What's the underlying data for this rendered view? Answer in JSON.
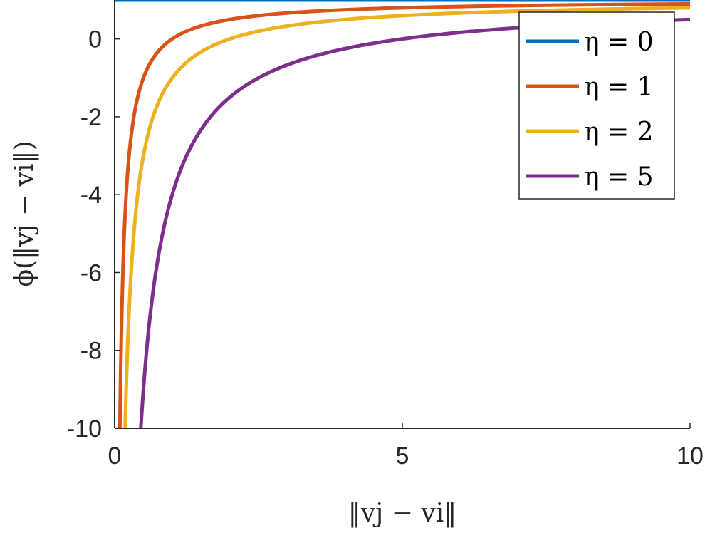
{
  "chart_data": {
    "type": "line",
    "title": "",
    "xlabel": "‖vj − vi‖",
    "ylabel": "ϕ(‖vj − vi‖)",
    "xlim": [
      0,
      10
    ],
    "ylim": [
      -10,
      1
    ],
    "xticks": [
      0,
      5,
      10
    ],
    "xtick_labels": [
      "0",
      "5",
      "10"
    ],
    "yticks": [
      -10,
      -8,
      -6,
      -4,
      -2,
      0
    ],
    "ytick_labels": [
      "-10",
      "-8",
      "-6",
      "-4",
      "-2",
      "0"
    ],
    "grid": false,
    "legend_position": "top-right",
    "series": [
      {
        "name": "η = 0",
        "eta": 0,
        "color": "#0072BD",
        "function": "1 - η/x"
      },
      {
        "name": "η = 1",
        "eta": 1,
        "color": "#D95319",
        "function": "1 - η/x"
      },
      {
        "name": "η = 2",
        "eta": 2,
        "color": "#EDB120",
        "function": "1 - η/x"
      },
      {
        "name": "η = 5",
        "eta": 5,
        "color": "#7E2F8E",
        "function": "1 - η/x"
      }
    ]
  }
}
